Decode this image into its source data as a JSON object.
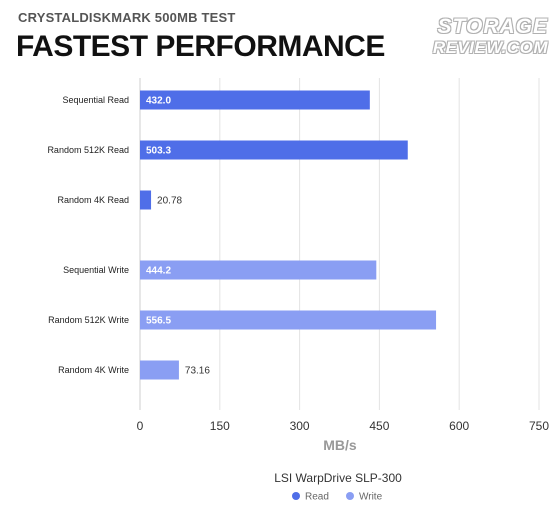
{
  "header": {
    "subtitle": "CRYSTALDISKMARK 500MB TEST",
    "title": "FASTEST PERFORMANCE",
    "logo_line1": "STORAGE",
    "logo_line2": "REVIEW.COM"
  },
  "chart_data": {
    "type": "bar",
    "orientation": "horizontal",
    "title": "FASTEST PERFORMANCE",
    "subtitle": "CRYSTALDISKMARK 500MB TEST",
    "xlabel": "MB/s",
    "xlim": [
      0,
      750
    ],
    "xticks": [
      0,
      150,
      300,
      450,
      600,
      750
    ],
    "grid": "vertical",
    "legend_title": "LSI WarpDrive SLP-300",
    "legend_position": "bottom",
    "series": [
      {
        "name": "Read",
        "color": "#4f6ee8",
        "categories": [
          "Sequential Read",
          "Random 512K Read",
          "Random 4K Read"
        ],
        "values": [
          432.0,
          503.3,
          20.78
        ],
        "labels": [
          "432.0",
          "503.3",
          "20.78"
        ]
      },
      {
        "name": "Write",
        "color": "#8a9ef3",
        "categories": [
          "Sequential Write",
          "Random 512K Write",
          "Random 4K Write"
        ],
        "values": [
          444.2,
          556.5,
          73.16
        ],
        "labels": [
          "444.2",
          "556.5",
          "73.16"
        ]
      }
    ]
  }
}
